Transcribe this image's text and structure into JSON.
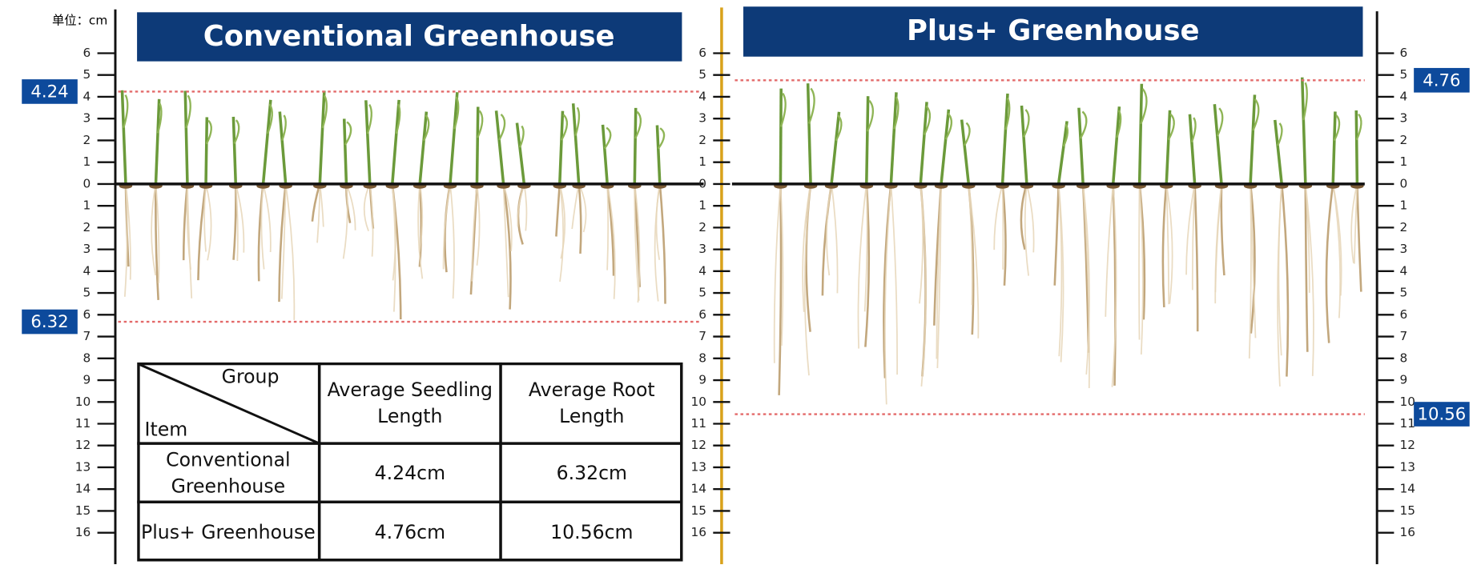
{
  "unit_label": "单位：cm",
  "panels": [
    {
      "title": "Conventional Greenhouse",
      "seedling_marker": 4.24,
      "root_marker": 6.32
    },
    {
      "title": "Plus+ Greenhouse",
      "seedling_marker": 4.76,
      "root_marker": 10.56
    }
  ],
  "ruler": {
    "above": [
      1,
      2,
      3,
      4,
      5,
      6
    ],
    "below": [
      0,
      1,
      2,
      3,
      4,
      5,
      6,
      7,
      8,
      9,
      10,
      11,
      12,
      13,
      14,
      15,
      16
    ]
  },
  "table": {
    "group_header": "Group",
    "item_header": "Item",
    "columns": [
      "Average Seedling Length",
      "Average Root Length"
    ],
    "rows": [
      [
        "Conventional Greenhouse",
        "4.24cm",
        "6.32cm"
      ],
      [
        "Plus+ Greenhouse",
        "4.76cm",
        "10.56cm"
      ]
    ]
  }
}
